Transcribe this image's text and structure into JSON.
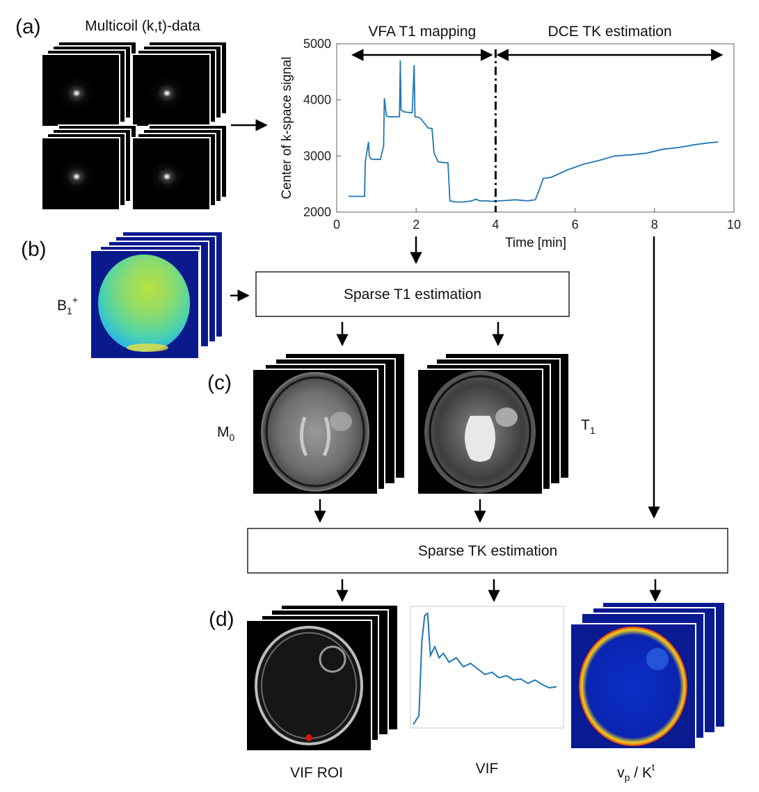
{
  "panels": {
    "a": "(a)",
    "b": "(b)",
    "c": "(c)",
    "d": "(d)"
  },
  "multicoil_title": "Multicoil (k,t)-data",
  "b1_label": {
    "base": "B",
    "sub": "1",
    "sup": "+"
  },
  "m0_label": {
    "base": "M",
    "sub": "0"
  },
  "t1_label": {
    "base": "T",
    "sub": "1"
  },
  "boxes": {
    "t1": "Sparse T1 estimation",
    "tk": "Sparse TK estimation"
  },
  "output_captions": {
    "vif_roi": "VIF ROI",
    "vif": "VIF",
    "vp_kt": {
      "v": "v",
      "vsub": "p",
      "mid": " / K",
      "ksup": "t"
    }
  },
  "colors": {
    "line": "#1f77b4",
    "arrow": "#000000",
    "b1_outer": "#0a1a8c",
    "roi": "#d21414"
  },
  "chart_data": {
    "type": "line",
    "xlabel": "Time [min]",
    "ylabel": "Center of k-space signal",
    "xlim": [
      0,
      10
    ],
    "ylim": [
      2000,
      5000
    ],
    "xticks": [
      "0",
      "2",
      "4",
      "6",
      "8",
      "10"
    ],
    "yticks": [
      "2000",
      "3000",
      "4000",
      "5000"
    ],
    "grid": false,
    "annotations": [
      {
        "text": "VFA T1 mapping",
        "span": [
          0.4,
          3.9
        ]
      },
      {
        "text": "DCE TK estimation",
        "span": [
          4.05,
          9.7
        ]
      }
    ],
    "divider_x": 4,
    "series": [
      {
        "color": "#1f77b4",
        "x": [
          0.3,
          0.7,
          0.72,
          0.8,
          0.82,
          0.86,
          0.9,
          1.0,
          1.1,
          1.18,
          1.2,
          1.25,
          1.3,
          1.5,
          1.58,
          1.6,
          1.62,
          1.68,
          1.75,
          1.9,
          1.95,
          1.97,
          2.0,
          2.1,
          2.3,
          2.4,
          2.45,
          2.55,
          2.7,
          2.8,
          2.85,
          3.0,
          3.2,
          3.4,
          3.5,
          3.6,
          3.8,
          3.9,
          4.0,
          4.1,
          4.3,
          4.5,
          4.8,
          5.0,
          5.1,
          5.2,
          5.4,
          5.8,
          6.2,
          6.6,
          7.0,
          7.4,
          7.8,
          8.2,
          8.6,
          9.0,
          9.3,
          9.6
        ],
        "y": [
          2280,
          2280,
          2900,
          3250,
          3000,
          2950,
          2940,
          2940,
          2940,
          3180,
          4030,
          3720,
          3700,
          3700,
          3700,
          4700,
          3820,
          3790,
          3780,
          3770,
          4620,
          3700,
          3700,
          3680,
          3500,
          3490,
          3050,
          2900,
          2880,
          2880,
          2200,
          2180,
          2180,
          2200,
          2230,
          2200,
          2200,
          2190,
          2200,
          2200,
          2210,
          2220,
          2200,
          2220,
          2400,
          2600,
          2620,
          2750,
          2850,
          2920,
          3000,
          3020,
          3050,
          3120,
          3150,
          3200,
          3230,
          3250
        ]
      }
    ]
  },
  "vif_curve": {
    "x": [
      0,
      0.04,
      0.06,
      0.08,
      0.1,
      0.12,
      0.15,
      0.18,
      0.21,
      0.25,
      0.3,
      0.35,
      0.4,
      0.45,
      0.5,
      0.55,
      0.6,
      0.65,
      0.7,
      0.75,
      0.8,
      0.85,
      0.9,
      0.95,
      1.0
    ],
    "y": [
      0.0,
      0.08,
      0.75,
      0.98,
      1.0,
      0.62,
      0.7,
      0.6,
      0.64,
      0.56,
      0.6,
      0.52,
      0.55,
      0.5,
      0.45,
      0.47,
      0.42,
      0.44,
      0.4,
      0.41,
      0.37,
      0.4,
      0.36,
      0.33,
      0.34
    ]
  }
}
